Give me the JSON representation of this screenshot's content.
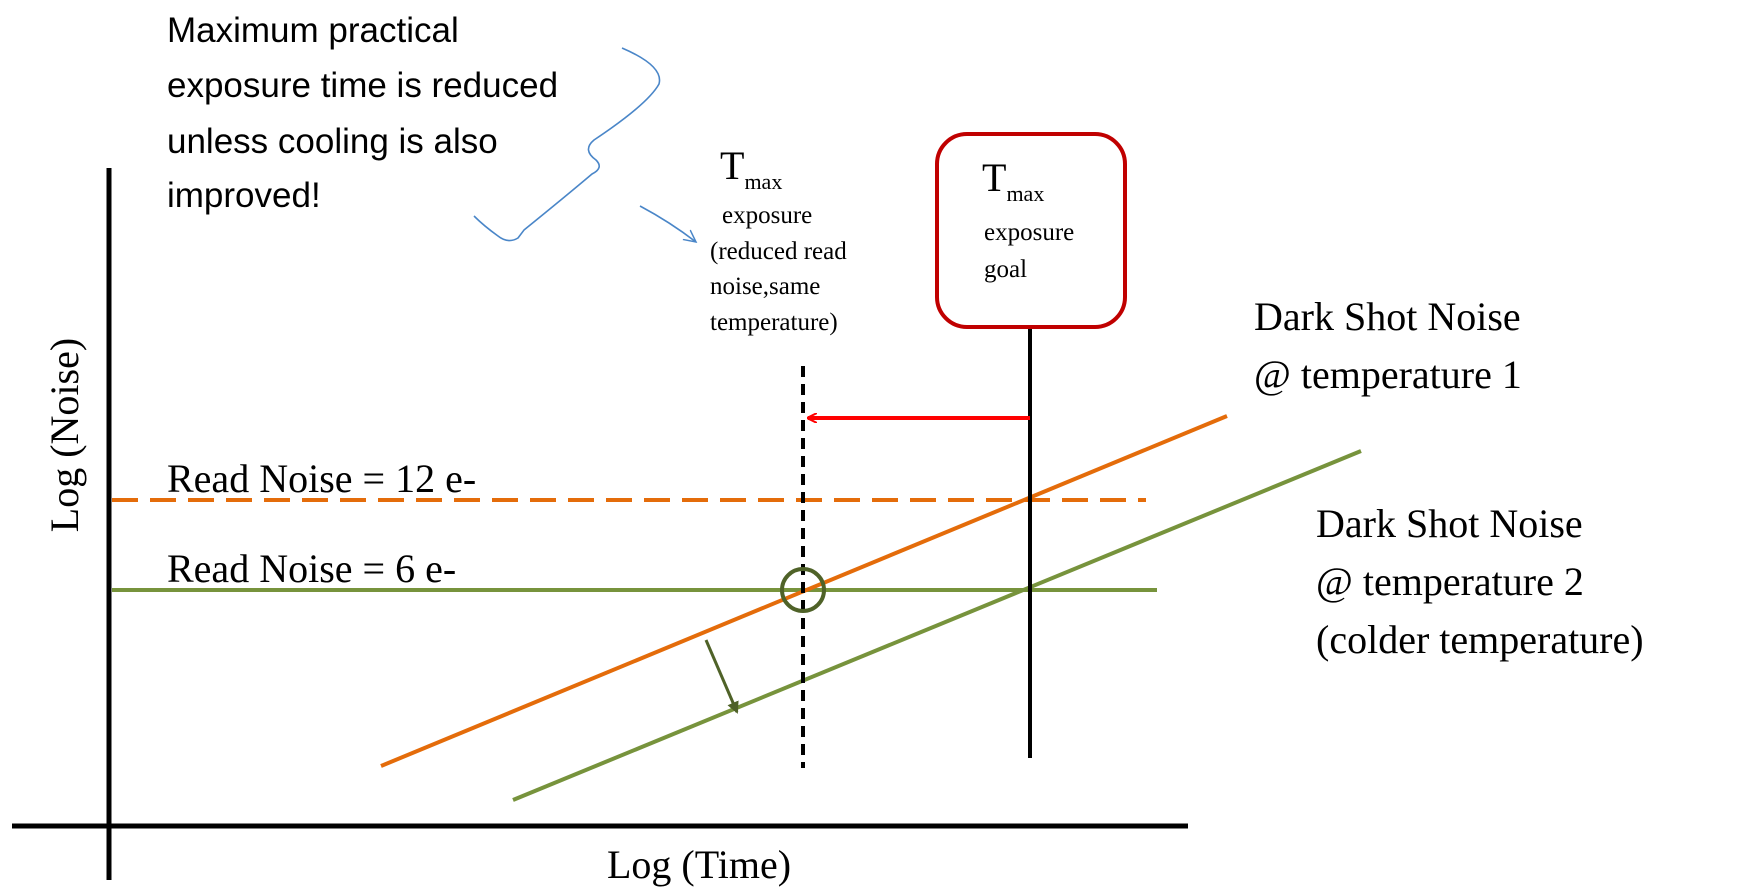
{
  "axes": {
    "x_label": "Log (Time)",
    "y_label": "Log (Noise)"
  },
  "annotation_note": {
    "lines": [
      "Maximum practical",
      "exposure time is reduced",
      "unless cooling is also",
      "improved!"
    ]
  },
  "tmax_reduced": {
    "symbol": "T",
    "subscript": "max",
    "lines": [
      "exposure",
      "(reduced read",
      "noise,same",
      "temperature)"
    ]
  },
  "tmax_goal": {
    "symbol": "T",
    "subscript": "max",
    "lines": [
      "exposure",
      "goal"
    ]
  },
  "read_noise_high": {
    "label": "Read Noise = 12 e-"
  },
  "read_noise_low": {
    "label": "Read Noise = 6 e-"
  },
  "dark_noise_t1": {
    "lines": [
      "Dark Shot Noise",
      "@ temperature 1"
    ]
  },
  "dark_noise_t2": {
    "lines": [
      "Dark Shot Noise",
      "@ temperature 2",
      "(colder temperature)"
    ]
  },
  "colors": {
    "orange": "#e46c0a",
    "green": "#77933c",
    "dark_green": "#4f6228",
    "red": "#ff0000",
    "box_border": "#c00000",
    "note_arrow": "#4a86c8"
  }
}
